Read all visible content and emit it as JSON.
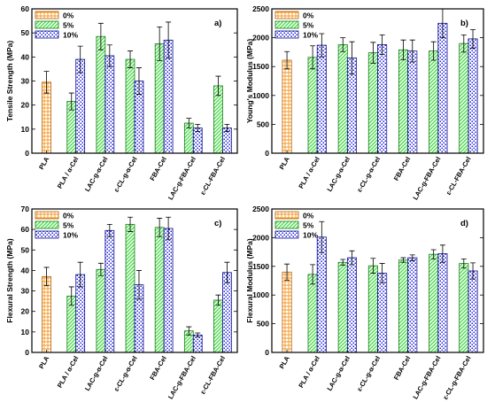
{
  "colors": {
    "0%": "#f5961e",
    "5%": "#3cd23c",
    "10%": "#2222dd"
  },
  "chart_data": [
    {
      "type": "bar",
      "panel_label": "a)",
      "ylabel": "Tensile Strength (MPa)",
      "ylim": [
        0,
        60
      ],
      "yticks": [
        0,
        10,
        20,
        30,
        40,
        50,
        60
      ],
      "categories": [
        "PLA",
        "PLA / α-Cel",
        "LAC-g-α-Cel",
        "ε-CL-g-α-Cel",
        "FBA-Cel",
        "LAC-g-FBA-Cel",
        "ε-CL-FBA-Cel"
      ],
      "legend": [
        "0%",
        "5%",
        "10%"
      ],
      "legend_position": "top-left",
      "series": [
        {
          "name": "0%",
          "values": [
            29.5,
            null,
            null,
            null,
            null,
            null,
            null
          ],
          "errors": [
            4.5,
            null,
            null,
            null,
            null,
            null,
            null
          ]
        },
        {
          "name": "5%",
          "values": [
            null,
            21.5,
            48.5,
            39,
            45.5,
            12.5,
            28
          ],
          "errors": [
            null,
            3.5,
            5.5,
            3.5,
            7,
            2,
            4
          ]
        },
        {
          "name": "10%",
          "values": [
            null,
            39,
            40.5,
            30,
            47,
            10.5,
            10.5
          ],
          "errors": [
            null,
            5.5,
            4.5,
            5.5,
            7.5,
            1.5,
            1.5
          ]
        }
      ]
    },
    {
      "type": "bar",
      "panel_label": "b)",
      "ylabel": "Young's Modulus (MPa)",
      "ylim": [
        0,
        2500
      ],
      "yticks": [
        0,
        500,
        1000,
        1500,
        2000,
        2500
      ],
      "categories": [
        "PLA",
        "PLA / α-Cel",
        "LAC-g-α-Cel",
        "ε-CL-g-α-Cel",
        "FBA-Cel",
        "LAC-g-FBA-Cel",
        "ε-CL-FBA-Cel"
      ],
      "legend": [
        "0%",
        "5%",
        "10%"
      ],
      "legend_position": "top-left",
      "series": [
        {
          "name": "0%",
          "values": [
            1610,
            null,
            null,
            null,
            null,
            null,
            null
          ],
          "errors": [
            150,
            null,
            null,
            null,
            null,
            null,
            null
          ]
        },
        {
          "name": "5%",
          "values": [
            null,
            1660,
            1880,
            1740,
            1790,
            1770,
            1900
          ],
          "errors": [
            null,
            200,
            120,
            180,
            170,
            160,
            150
          ]
        },
        {
          "name": "10%",
          "values": [
            null,
            1870,
            1650,
            1880,
            1770,
            2250,
            1980
          ],
          "errors": [
            null,
            200,
            280,
            170,
            190,
            250,
            160
          ]
        }
      ]
    },
    {
      "type": "bar",
      "panel_label": "c)",
      "ylabel": "Flexural Strength (MPa)",
      "ylim": [
        0,
        70
      ],
      "yticks": [
        0,
        10,
        20,
        30,
        40,
        50,
        60,
        70
      ],
      "categories": [
        "PLA",
        "PLA / α-Cel",
        "LAC-g-α-Cel",
        "ε-CL-g-α-Cel",
        "FBA-Cel",
        "LAC-g-FBA-Cel",
        "ε-CL-FBA-Cel"
      ],
      "legend": [
        "0%",
        "5%",
        "10%"
      ],
      "legend_position": "top-left",
      "series": [
        {
          "name": "0%",
          "values": [
            37,
            null,
            null,
            null,
            null,
            null,
            null
          ],
          "errors": [
            4.5,
            null,
            null,
            null,
            null,
            null,
            null
          ]
        },
        {
          "name": "5%",
          "values": [
            null,
            27.5,
            40.5,
            62.5,
            61,
            10.5,
            25.5
          ],
          "errors": [
            null,
            4.5,
            3,
            3.5,
            4.5,
            2,
            2.5
          ]
        },
        {
          "name": "10%",
          "values": [
            null,
            38,
            59.5,
            33,
            60.5,
            8.5,
            39
          ],
          "errors": [
            null,
            6,
            3,
            7,
            5.5,
            1,
            5
          ]
        }
      ]
    },
    {
      "type": "bar",
      "panel_label": "d)",
      "ylabel": "Flexural Modulus (MPa)",
      "ylim": [
        0,
        2500
      ],
      "yticks": [
        0,
        500,
        1000,
        1500,
        2000,
        2500
      ],
      "categories": [
        "PLA",
        "PLA / α-Cel",
        "LAC-g-α-Cel",
        "ε-CL-g-α-Cel",
        "FBA-Cel",
        "LAC-g-FBA-Cel",
        "ε-CL-g-FBA-Cel"
      ],
      "legend": [
        "0%",
        "5%",
        "10%"
      ],
      "legend_position": "top-left",
      "series": [
        {
          "name": "0%",
          "values": [
            1400,
            null,
            null,
            null,
            null,
            null,
            null
          ],
          "errors": [
            140,
            null,
            null,
            null,
            null,
            null,
            null
          ]
        },
        {
          "name": "5%",
          "values": [
            null,
            1360,
            1570,
            1510,
            1610,
            1710,
            1550
          ],
          "errors": [
            null,
            170,
            50,
            130,
            40,
            80,
            80
          ]
        },
        {
          "name": "10%",
          "values": [
            null,
            2010,
            1650,
            1380,
            1650,
            1720,
            1420
          ],
          "errors": [
            null,
            270,
            120,
            170,
            50,
            150,
            140
          ]
        }
      ]
    }
  ]
}
